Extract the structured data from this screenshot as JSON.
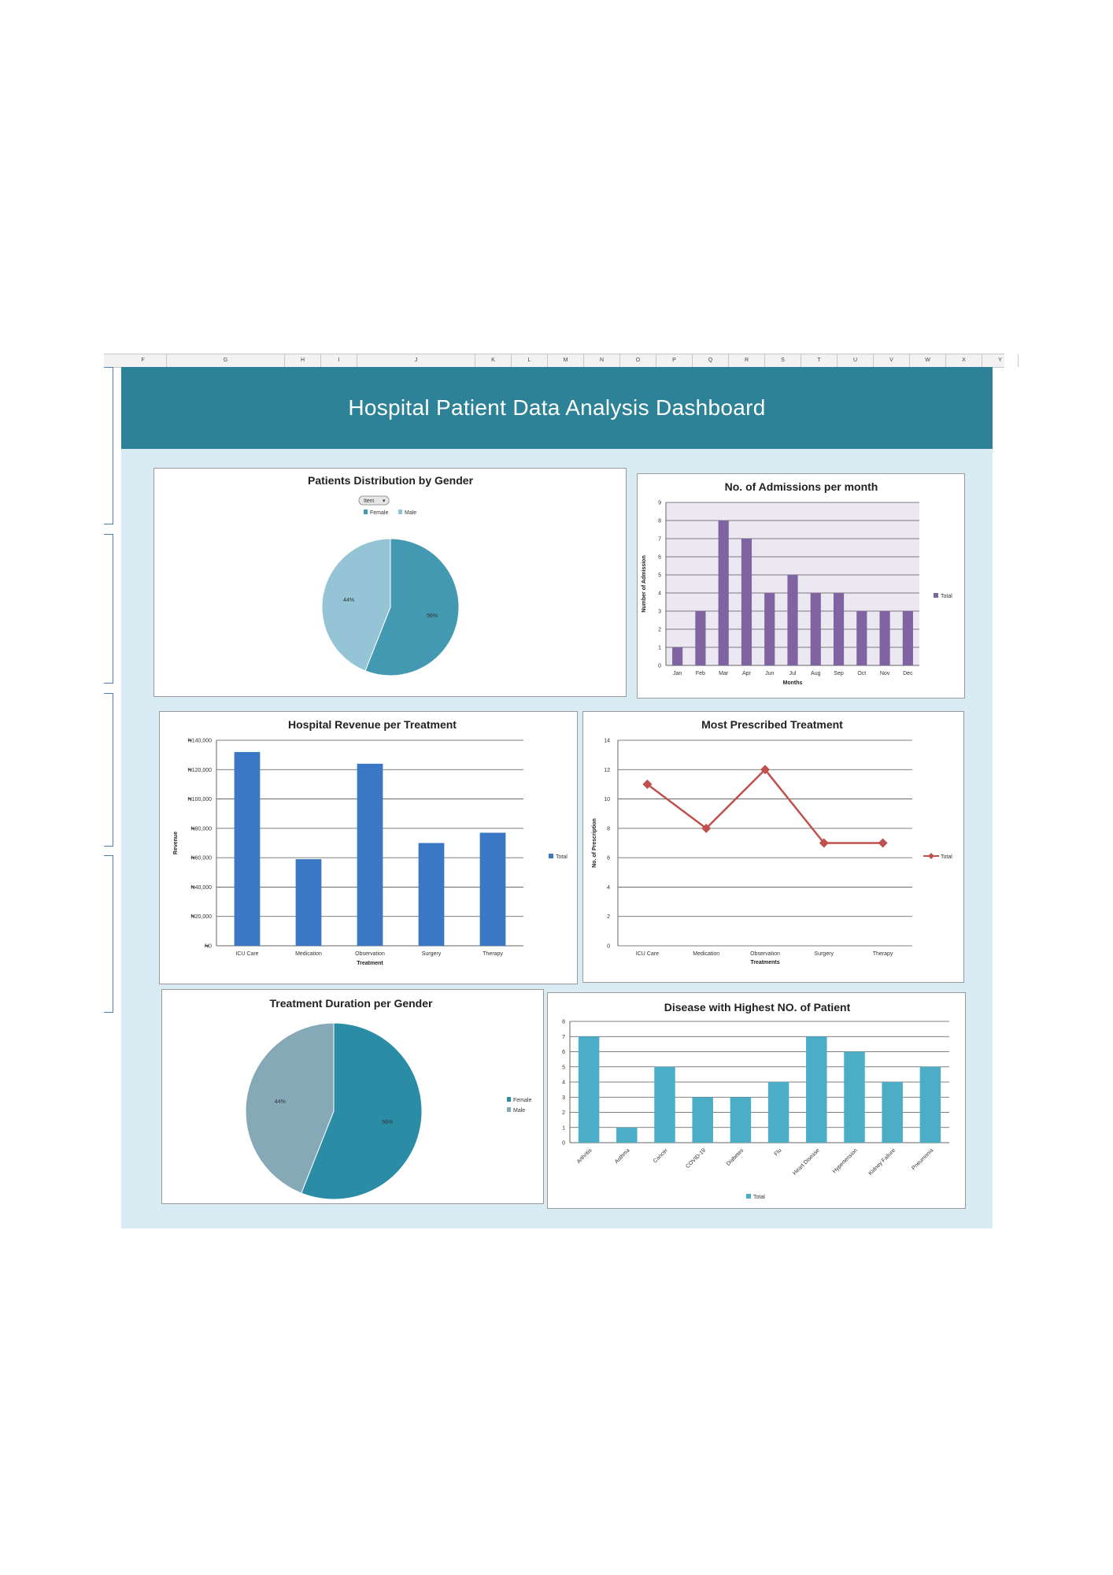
{
  "spreadsheet": {
    "columns": [
      "F",
      "G",
      "H",
      "I",
      "J",
      "K",
      "L",
      "M",
      "N",
      "O",
      "P",
      "Q",
      "R",
      "S",
      "T",
      "U",
      "V",
      "W",
      "X",
      "Y"
    ]
  },
  "dashboard": {
    "title": "Hospital Patient Data Analysis Dashboard",
    "background": "#d9ebf3",
    "banner_color": "#2e8297"
  },
  "chart_data": [
    {
      "id": "gender-pie",
      "type": "pie",
      "title": "Patients Distribution by Gender",
      "filter_label": "Item",
      "categories": [
        "Female",
        "Male"
      ],
      "values": [
        56,
        44
      ],
      "labels": [
        "56%",
        "44%"
      ],
      "colors": [
        "#4399b1",
        "#94c4d5"
      ],
      "legend": "top"
    },
    {
      "id": "admissions-bar",
      "type": "bar",
      "title": "No. of Admissions per month",
      "categories": [
        "Jan",
        "Feb",
        "Mar",
        "Apr",
        "Jun",
        "Jul",
        "Aug",
        "Sep",
        "Oct",
        "Nov",
        "Dec"
      ],
      "values": [
        1,
        3,
        8,
        7,
        4,
        5,
        4,
        4,
        3,
        3,
        3
      ],
      "series_name": "Total",
      "xlabel": "Months",
      "ylabel": "Number of Admission",
      "ylim": [
        0,
        9
      ],
      "yticks": [
        0,
        1,
        2,
        3,
        4,
        5,
        6,
        7,
        8,
        9
      ],
      "color": "#8064a2",
      "plot_bg": "#ece8f2",
      "legend": "right"
    },
    {
      "id": "revenue-bar",
      "type": "bar",
      "title": "Hospital Revenue per Treatment",
      "categories": [
        "ICU Care",
        "Medication",
        "Observation",
        "Surgery",
        "Therapy"
      ],
      "values": [
        132000,
        59000,
        124000,
        70000,
        77000
      ],
      "series_name": "Total",
      "xlabel": "Treatment",
      "ylabel": "Revenue",
      "ylim": [
        0,
        140000
      ],
      "yticks": [
        0,
        20000,
        40000,
        60000,
        80000,
        100000,
        120000,
        140000
      ],
      "ytick_labels": [
        "₦0",
        "₦20,000",
        "₦40,000",
        "₦60,000",
        "₦80,000",
        "₦100,000",
        "₦120,000",
        "₦140,000"
      ],
      "color": "#3a78c6",
      "legend": "right"
    },
    {
      "id": "prescribed-line",
      "type": "line",
      "title": "Most Prescribed Treatment",
      "categories": [
        "ICU Care",
        "Medication",
        "Observation",
        "Surgery",
        "Therapy"
      ],
      "values": [
        11,
        8,
        12,
        7,
        7
      ],
      "series_name": "Total",
      "xlabel": "Treatments",
      "ylabel": "No. of Prescription",
      "ylim": [
        0,
        14
      ],
      "yticks": [
        0,
        2,
        4,
        6,
        8,
        10,
        12,
        14
      ],
      "color": "#c0504d",
      "legend": "right"
    },
    {
      "id": "duration-pie",
      "type": "pie",
      "title": "Treatment Duration per Gender",
      "categories": [
        "Female",
        "Male"
      ],
      "values": [
        56,
        44
      ],
      "labels": [
        "56%",
        "44%"
      ],
      "colors": [
        "#2b8ca6",
        "#86a9b8"
      ],
      "legend": "right"
    },
    {
      "id": "disease-bar",
      "type": "bar",
      "title": "Disease with Highest NO. of Patient",
      "categories": [
        "Arthritis",
        "Asthma",
        "Cancer",
        "COVID-19",
        "Diabetes",
        "Flu",
        "Heart Disease",
        "Hypertension",
        "Kidney Failure",
        "Pneumonia"
      ],
      "values": [
        7,
        1,
        5,
        3,
        3,
        4,
        7,
        6,
        4,
        5
      ],
      "series_name": "Total",
      "ylim": [
        0,
        8
      ],
      "yticks": [
        0,
        1,
        2,
        3,
        4,
        5,
        6,
        7,
        8
      ],
      "color": "#4badc6",
      "legend": "bottom"
    }
  ]
}
